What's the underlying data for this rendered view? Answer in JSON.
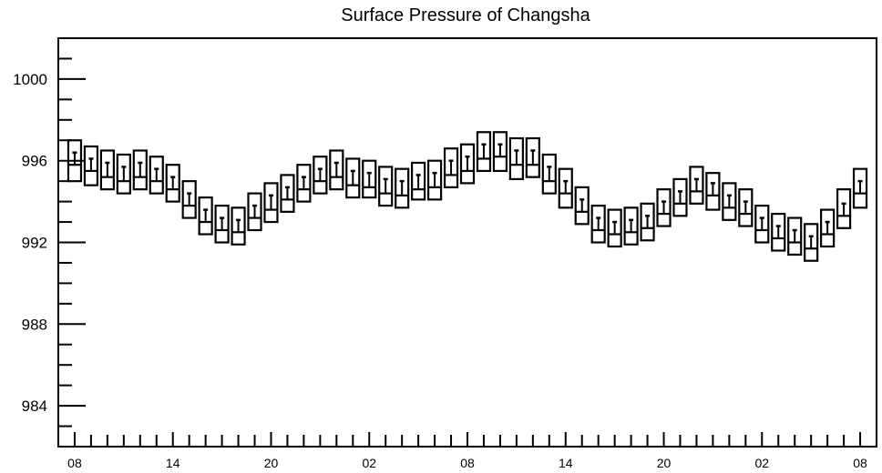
{
  "chart_data": {
    "type": "box",
    "title": "Surface Pressure of Changsha",
    "xlabel": "",
    "ylabel": "",
    "ylim": [
      982,
      1002
    ],
    "yticks": [
      984,
      988,
      992,
      996,
      1000
    ],
    "ytick_labels": [
      "984",
      "988",
      "992",
      "996",
      "1000"
    ],
    "x_hours": [
      0,
      6,
      12,
      18,
      24,
      30,
      36,
      42,
      48
    ],
    "xtick_labels": [
      "08",
      "14",
      "20",
      "02",
      "08",
      "14",
      "20",
      "02",
      "08"
    ],
    "x_range": [
      -1,
      49
    ],
    "grid": false,
    "color": "#000000",
    "boxes": {
      "x": [
        0,
        1,
        2,
        3,
        4,
        5,
        6,
        7,
        8,
        9,
        10,
        11,
        12,
        13,
        14,
        15,
        16,
        17,
        18,
        19,
        20,
        21,
        22,
        23,
        24,
        25,
        26,
        27,
        28,
        29,
        30,
        31,
        32,
        33,
        34,
        35,
        36,
        37,
        38,
        39,
        40,
        41,
        42,
        43,
        44,
        45,
        46,
        47,
        48
      ],
      "top": [
        997.0,
        996.7,
        996.5,
        996.3,
        996.5,
        996.2,
        995.8,
        995.0,
        994.2,
        993.8,
        993.7,
        994.4,
        994.9,
        995.3,
        995.8,
        996.2,
        996.5,
        996.1,
        996.0,
        995.7,
        995.6,
        995.9,
        996.0,
        996.6,
        996.8,
        997.4,
        997.4,
        997.1,
        997.1,
        996.3,
        995.6,
        994.7,
        993.8,
        993.6,
        993.7,
        993.9,
        994.6,
        995.1,
        995.7,
        995.4,
        994.9,
        994.6,
        993.8,
        993.4,
        993.2,
        992.9,
        993.6,
        994.6,
        995.6
      ],
      "median": [
        995.8,
        995.5,
        995.2,
        995.0,
        995.2,
        995.0,
        994.6,
        993.8,
        993.0,
        992.6,
        992.5,
        993.2,
        993.6,
        994.1,
        994.6,
        995.0,
        995.2,
        994.8,
        994.7,
        994.4,
        994.3,
        994.6,
        994.7,
        995.3,
        995.5,
        996.1,
        996.2,
        995.8,
        995.8,
        995.0,
        994.4,
        993.5,
        992.6,
        992.4,
        992.5,
        992.7,
        993.4,
        993.9,
        994.5,
        994.3,
        993.7,
        993.4,
        992.6,
        992.2,
        992.0,
        991.7,
        992.4,
        993.3,
        994.4
      ],
      "bottom": [
        995.0,
        994.8,
        994.6,
        994.4,
        994.6,
        994.4,
        994.0,
        993.2,
        992.4,
        992.0,
        991.9,
        992.6,
        993.0,
        993.5,
        994.0,
        994.4,
        994.6,
        994.2,
        994.2,
        993.8,
        993.7,
        994.1,
        994.1,
        994.7,
        994.9,
        995.5,
        995.5,
        995.1,
        995.2,
        994.4,
        993.7,
        992.9,
        992.0,
        991.8,
        991.9,
        992.1,
        992.8,
        993.3,
        993.9,
        993.6,
        993.1,
        992.8,
        992.0,
        991.6,
        991.4,
        991.1,
        991.8,
        992.7,
        993.7
      ],
      "marker": [
        996.4,
        996.1,
        995.9,
        995.7,
        995.9,
        995.6,
        995.2,
        994.4,
        993.6,
        993.2,
        993.1,
        993.8,
        994.3,
        994.7,
        995.2,
        995.6,
        995.9,
        995.5,
        995.4,
        995.1,
        995.0,
        995.3,
        995.4,
        996.0,
        996.2,
        996.8,
        996.8,
        996.5,
        996.5,
        995.7,
        995.0,
        994.1,
        993.2,
        993.0,
        993.1,
        993.3,
        994.0,
        994.5,
        995.1,
        994.9,
        994.3,
        994.0,
        993.2,
        992.8,
        992.6,
        992.3,
        993.0,
        993.9,
        995.0
      ]
    }
  }
}
